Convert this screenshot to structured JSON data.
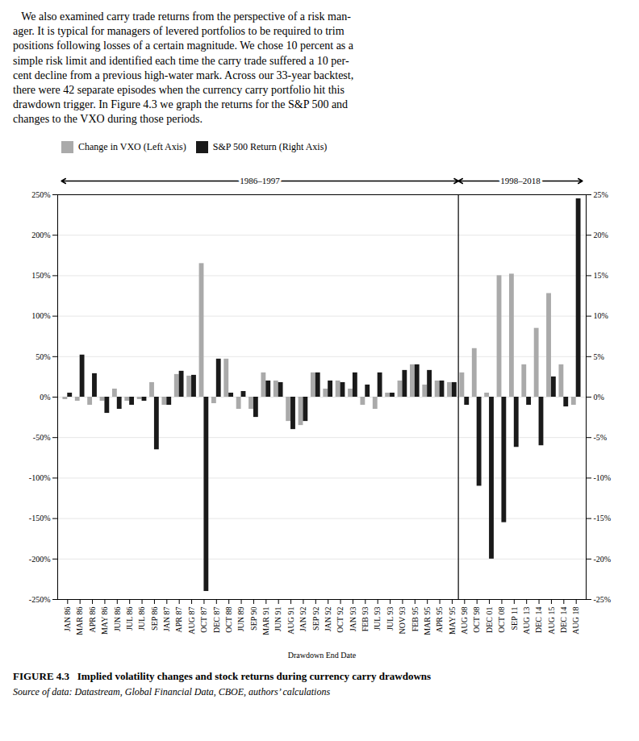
{
  "chart_data": {
    "type": "bar",
    "paragraph": [
      "   We also examined carry trade returns from the perspective of a risk man-",
      "ager. It is typical for managers of levered portfolios to be required to trim",
      "positions following losses of a certain magnitude. We chose 10 percent as a",
      "simple risk limit and identified each time the carry trade suffered a 10 per-",
      "cent decline from a previous high-water mark. Across our 33-year backtest,",
      "there were 42 separate episodes when the currency carry portfolio hit this",
      "drawdown trigger. In Figure 4.3 we graph the returns for the S&P 500 and",
      "changes to the VXO during those periods."
    ],
    "caption": "FIGURE 4.3   Implied volatility changes and stock returns during currency carry drawdowns",
    "source": "Source of data: Datastream, Global Financial Data, CBOE, authors’ calculations",
    "xlabel": "Drawdown End Date",
    "categories": [
      "JAN 86",
      "MAR 86",
      "APR 86",
      "MAY 86",
      "JUN 86",
      "JUL 86",
      "JUL 86",
      "SEP 86",
      "JAN 87",
      "APR 87",
      "AUG 87",
      "OCT 87",
      "DEC 87",
      "OCT 88",
      "JUN 89",
      "SEP 90",
      "MAR 91",
      "JUN 91",
      "AUG 91",
      "JAN 92",
      "SEP 92",
      "JAN 92",
      "OCT 92",
      "JAN 93",
      "FEB 93",
      "JUL 93",
      "JUL 93",
      "NOV 93",
      "FEB 95",
      "MAR 95",
      "APR 95",
      "MAY 95",
      "AUG 98",
      "OCT 98",
      "DEC 01",
      "OCT 08",
      "SEP 11",
      "AUG 13",
      "DEC 14",
      "AUG 15",
      "DEC 14",
      "AUG 18"
    ],
    "series": [
      {
        "name": "Change in VXO (Left Axis)",
        "color": "#aaaaaa",
        "values": [
          -3,
          -5,
          -10,
          -5,
          10,
          -5,
          -3,
          18,
          -10,
          28,
          26,
          165,
          -8,
          47,
          -15,
          -15,
          30,
          20,
          -30,
          -35,
          30,
          10,
          20,
          10,
          -10,
          -15,
          5,
          20,
          40,
          15,
          20,
          18,
          30,
          60,
          5,
          150,
          152,
          40,
          85,
          128,
          40,
          -10
        ]
      },
      {
        "name": "S&P 500 Return (Right Axis)",
        "color": "#1a1a1a",
        "axis": "y2",
        "values": [
          0.5,
          5.2,
          2.9,
          -2.0,
          -1.5,
          -1.0,
          -0.5,
          -6.5,
          -1.0,
          3.2,
          2.7,
          -24.0,
          4.7,
          0.5,
          0.7,
          -2.5,
          2.0,
          1.8,
          -4.0,
          -3.0,
          3.0,
          2.0,
          1.8,
          3.0,
          1.5,
          3.0,
          0.5,
          3.3,
          4.0,
          3.3,
          2.0,
          1.8,
          -1.0,
          -11.0,
          -20.0,
          -15.5,
          -6.2,
          -1.0,
          -6.0,
          2.5,
          -1.2,
          24.5
        ]
      }
    ],
    "ylim": [
      -250,
      250
    ],
    "yticks": [
      {
        "value": -250,
        "label": "-250%"
      },
      {
        "value": -200,
        "label": "-200%"
      },
      {
        "value": -150,
        "label": "-150%"
      },
      {
        "value": -100,
        "label": "-100%"
      },
      {
        "value": -50,
        "label": "-50%"
      },
      {
        "value": 0,
        "label": "0%"
      },
      {
        "value": 50,
        "label": "50%"
      },
      {
        "value": 100,
        "label": "100%"
      },
      {
        "value": 150,
        "label": "150%"
      },
      {
        "value": 200,
        "label": "200%"
      },
      {
        "value": 250,
        "label": "250%"
      }
    ],
    "y2lim": [
      -25,
      25
    ],
    "y2ticks": [
      {
        "value": -25,
        "label": "-25%"
      },
      {
        "value": -20,
        "label": "-20%"
      },
      {
        "value": -15,
        "label": "-15%"
      },
      {
        "value": -10,
        "label": "-10%"
      },
      {
        "value": -5,
        "label": "-5%"
      },
      {
        "value": 0,
        "label": "0%"
      },
      {
        "value": 5,
        "label": "5%"
      },
      {
        "value": 10,
        "label": "10%"
      },
      {
        "value": 15,
        "label": "15%"
      },
      {
        "value": 20,
        "label": "20%"
      },
      {
        "value": 25,
        "label": "25%"
      }
    ],
    "annotations": [
      {
        "text": "1986–1997",
        "from": "JAN 86",
        "to": "MAY 95"
      },
      {
        "text": "1998–2018",
        "from": "AUG 98",
        "to": "AUG 18"
      }
    ],
    "grid": true,
    "legend": "top"
  }
}
